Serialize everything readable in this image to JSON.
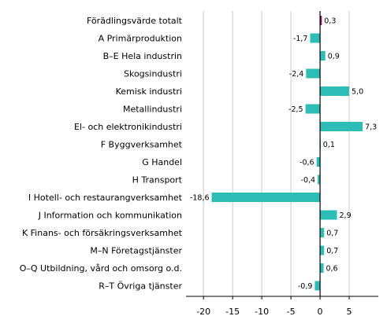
{
  "chart_data": {
    "type": "bar",
    "orientation": "horizontal",
    "title": "",
    "xlabel": "",
    "ylabel": "",
    "xlim": [
      -23,
      10
    ],
    "xticks": [
      -20,
      -15,
      -10,
      -5,
      0,
      5
    ],
    "grid": true,
    "legend": "none",
    "categories": [
      "Förädlingsvärde totalt",
      "A Primärproduktion",
      "B–E Hela industrin",
      "Skogsindustri",
      "Kemisk industri",
      "Metallindustri",
      "El- och elektronikindustri",
      "F Byggverksamhet",
      "G Handel",
      "H Transport",
      "I Hotell- och restaurangverksamhet",
      "J Information och kommunikation",
      "K Finans- och försäkringsverksamhet",
      "M–N Företagstjänster",
      "O–Q Utbildning, vård och omsorg o.d.",
      "R–T Övriga tjänster"
    ],
    "values": [
      0.3,
      -1.7,
      0.9,
      -2.4,
      5.0,
      -2.5,
      7.3,
      0.1,
      -0.6,
      -0.4,
      -18.6,
      2.9,
      0.7,
      0.7,
      0.6,
      -0.9
    ],
    "value_labels": [
      "0,3",
      "-1,7",
      "0,9",
      "-2,4",
      "5,0",
      "-2,5",
      "7,3",
      "0,1",
      "-0,6",
      "-0,4",
      "-18,6",
      "2,9",
      "0,7",
      "0,7",
      "0,6",
      "-0,9"
    ],
    "tick_labels": [
      "-20",
      "-15",
      "-10",
      "-5",
      "0",
      "5"
    ],
    "colors": {
      "highlight": "#8c0a6e",
      "bar": "#2ebdb6",
      "grid": "#cccccc",
      "axis": "#000000"
    }
  }
}
